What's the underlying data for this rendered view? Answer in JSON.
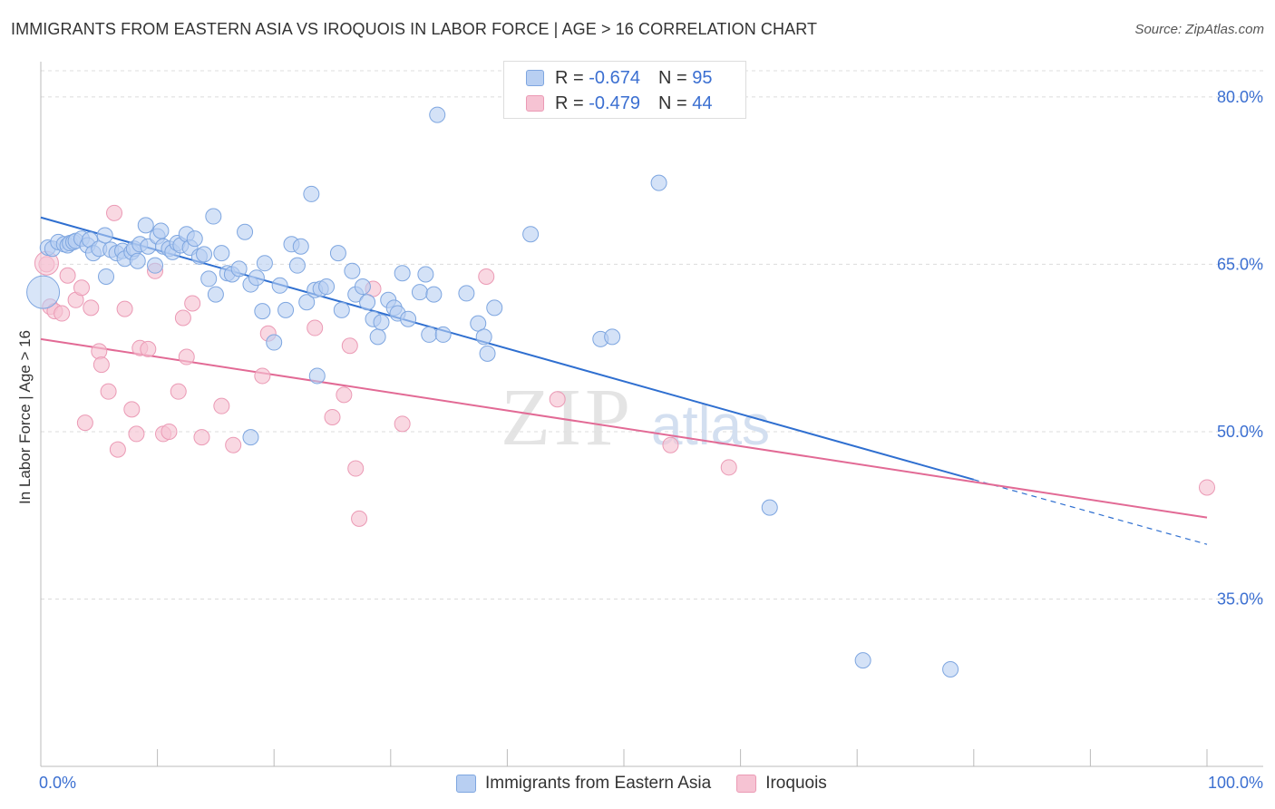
{
  "title": "IMMIGRANTS FROM EASTERN ASIA VS IROQUOIS IN LABOR FORCE | AGE > 16 CORRELATION CHART",
  "source": "Source: ZipAtlas.com",
  "watermark": {
    "zip": "ZIP",
    "atlas": "atlas"
  },
  "colors": {
    "blue_fill": "#b8cff2",
    "blue_stroke": "#7ea6e0",
    "blue_line": "#2f6fd0",
    "pink_fill": "#f6c3d3",
    "pink_stroke": "#eb9ab5",
    "pink_line": "#e26a95",
    "tick_text": "#3b6fd1",
    "grid": "#dcdcdc"
  },
  "legend": {
    "r_label": "R =",
    "n_label": "N =",
    "series": [
      {
        "r": "-0.674",
        "n": "95"
      },
      {
        "r": "-0.479",
        "n": "44"
      }
    ]
  },
  "chart_data": {
    "type": "scatter",
    "title": "IMMIGRANTS FROM EASTERN ASIA VS IROQUOIS IN LABOR FORCE | AGE > 16 CORRELATION CHART",
    "xlabel": "",
    "ylabel": "In Labor Force | Age > 16",
    "xlim": [
      0,
      100
    ],
    "ylim": [
      20,
      83
    ],
    "x_tick_labels": [
      "0.0%",
      "100.0%"
    ],
    "y_ticks": [
      35,
      50,
      65,
      80
    ],
    "y_tick_labels": [
      "35.0%",
      "50.0%",
      "65.0%",
      "80.0%"
    ],
    "grid": true,
    "legend_position": "bottom",
    "series": [
      {
        "name": "Immigrants from Eastern Asia",
        "points": [
          [
            0.6,
            66.5
          ],
          [
            1.0,
            66.4
          ],
          [
            1.5,
            67.0
          ],
          [
            2.0,
            66.8
          ],
          [
            2.3,
            66.7
          ],
          [
            2.5,
            66.9
          ],
          [
            2.8,
            67.0
          ],
          [
            3.0,
            67.1
          ],
          [
            3.5,
            67.3
          ],
          [
            4.0,
            66.7
          ],
          [
            4.2,
            67.2
          ],
          [
            4.5,
            66.0
          ],
          [
            5.0,
            66.4
          ],
          [
            5.5,
            67.6
          ],
          [
            5.6,
            63.9
          ],
          [
            6.0,
            66.3
          ],
          [
            6.5,
            66.0
          ],
          [
            7.0,
            66.2
          ],
          [
            7.2,
            65.5
          ],
          [
            7.8,
            66.1
          ],
          [
            8.0,
            66.4
          ],
          [
            8.3,
            65.3
          ],
          [
            8.5,
            66.8
          ],
          [
            9.0,
            68.5
          ],
          [
            9.2,
            66.6
          ],
          [
            9.8,
            64.9
          ],
          [
            10.0,
            67.5
          ],
          [
            10.3,
            68.0
          ],
          [
            10.5,
            66.6
          ],
          [
            11.0,
            66.4
          ],
          [
            11.3,
            66.1
          ],
          [
            11.7,
            66.9
          ],
          [
            12.0,
            66.7
          ],
          [
            12.5,
            67.7
          ],
          [
            12.8,
            66.5
          ],
          [
            13.2,
            67.3
          ],
          [
            13.6,
            65.7
          ],
          [
            14.0,
            65.9
          ],
          [
            14.4,
            63.7
          ],
          [
            14.8,
            69.3
          ],
          [
            15.0,
            62.3
          ],
          [
            15.5,
            66.0
          ],
          [
            16.0,
            64.2
          ],
          [
            16.4,
            64.1
          ],
          [
            17.0,
            64.6
          ],
          [
            17.5,
            67.9
          ],
          [
            18.0,
            63.2
          ],
          [
            18.5,
            63.8
          ],
          [
            19.0,
            60.8
          ],
          [
            19.2,
            65.1
          ],
          [
            20.0,
            58.0
          ],
          [
            20.5,
            63.1
          ],
          [
            21.0,
            60.9
          ],
          [
            21.5,
            66.8
          ],
          [
            22.0,
            64.9
          ],
          [
            22.3,
            66.6
          ],
          [
            22.8,
            61.6
          ],
          [
            23.2,
            71.3
          ],
          [
            23.5,
            62.7
          ],
          [
            24.0,
            62.8
          ],
          [
            24.5,
            63.0
          ],
          [
            25.5,
            66.0
          ],
          [
            25.8,
            60.9
          ],
          [
            26.7,
            64.4
          ],
          [
            27.0,
            62.3
          ],
          [
            27.6,
            63.0
          ],
          [
            28.0,
            61.6
          ],
          [
            28.5,
            60.1
          ],
          [
            28.9,
            58.5
          ],
          [
            29.2,
            59.8
          ],
          [
            29.8,
            61.8
          ],
          [
            30.3,
            61.1
          ],
          [
            30.6,
            60.6
          ],
          [
            31.0,
            64.2
          ],
          [
            31.5,
            60.1
          ],
          [
            32.5,
            62.5
          ],
          [
            33.0,
            64.1
          ],
          [
            33.3,
            58.7
          ],
          [
            33.7,
            62.3
          ],
          [
            34.0,
            78.4
          ],
          [
            34.5,
            58.7
          ],
          [
            36.5,
            62.4
          ],
          [
            37.5,
            59.7
          ],
          [
            38.0,
            58.5
          ],
          [
            38.3,
            57.0
          ],
          [
            38.9,
            61.1
          ],
          [
            42.0,
            67.7
          ],
          [
            48.0,
            58.3
          ],
          [
            49.0,
            58.5
          ],
          [
            53.0,
            72.3
          ],
          [
            62.5,
            43.2
          ],
          [
            70.5,
            29.5
          ],
          [
            78.0,
            28.7
          ],
          [
            18.0,
            49.5
          ],
          [
            23.7,
            55.0
          ]
        ]
      },
      {
        "name": "Iroquois",
        "points": [
          [
            0.5,
            65.0
          ],
          [
            0.8,
            61.2
          ],
          [
            1.2,
            60.8
          ],
          [
            1.8,
            60.6
          ],
          [
            2.3,
            64.0
          ],
          [
            3.0,
            61.8
          ],
          [
            3.5,
            62.9
          ],
          [
            3.8,
            50.8
          ],
          [
            4.3,
            61.1
          ],
          [
            5.0,
            57.2
          ],
          [
            5.2,
            56.0
          ],
          [
            5.8,
            53.6
          ],
          [
            6.3,
            69.6
          ],
          [
            6.6,
            48.4
          ],
          [
            7.2,
            61.0
          ],
          [
            7.8,
            52.0
          ],
          [
            8.2,
            49.8
          ],
          [
            8.5,
            57.5
          ],
          [
            9.2,
            57.4
          ],
          [
            9.8,
            64.4
          ],
          [
            10.5,
            49.8
          ],
          [
            11.0,
            50.0
          ],
          [
            11.8,
            53.6
          ],
          [
            12.2,
            60.2
          ],
          [
            12.5,
            56.7
          ],
          [
            13.0,
            61.5
          ],
          [
            13.8,
            49.5
          ],
          [
            15.5,
            52.3
          ],
          [
            16.5,
            48.8
          ],
          [
            19.0,
            55.0
          ],
          [
            19.5,
            58.8
          ],
          [
            23.5,
            59.3
          ],
          [
            25.0,
            51.3
          ],
          [
            26.0,
            53.3
          ],
          [
            26.5,
            57.7
          ],
          [
            27.0,
            46.7
          ],
          [
            27.3,
            42.2
          ],
          [
            28.5,
            62.8
          ],
          [
            31.0,
            50.7
          ],
          [
            38.2,
            63.9
          ],
          [
            44.3,
            52.9
          ],
          [
            54.0,
            48.8
          ],
          [
            59.0,
            46.8
          ],
          [
            100.0,
            45.0
          ]
        ]
      }
    ],
    "trend_lines": [
      {
        "series": "Immigrants from Eastern Asia",
        "x": [
          0,
          80
        ],
        "y": [
          69.2,
          45.7
        ],
        "dashed_extension_to_x": 100,
        "dashed_end_y": 39.9
      },
      {
        "series": "Iroquois",
        "x": [
          0,
          100
        ],
        "y": [
          58.3,
          42.3
        ]
      }
    ]
  }
}
